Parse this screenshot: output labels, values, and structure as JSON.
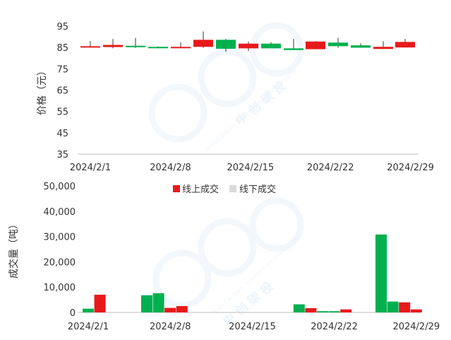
{
  "colors": {
    "up": "#E8191B",
    "down": "#00B050",
    "offline_legend": "#D9D9D9",
    "axis": "#BFBFBF",
    "text": "#333333",
    "watermark": "#3A8EE6"
  },
  "watermark": {
    "brand_en": "SinoCarbon Innovation Investment",
    "brand_cn": "中创碳投"
  },
  "chart_data": [
    {
      "type": "candlestick",
      "ylabel": "价格（元）",
      "ylim": [
        35,
        95
      ],
      "yticks": [
        "35",
        "45",
        "55",
        "65",
        "75",
        "85",
        "95"
      ],
      "ytick_values": [
        35,
        45,
        55,
        65,
        75,
        85,
        95
      ],
      "xlim": [
        0,
        29
      ],
      "xtick_labels": [
        "2024/2/1",
        "2024/2/8",
        "2024/2/15",
        "2024/2/22",
        "2024/2/29"
      ],
      "xtick_values": [
        1,
        8,
        15,
        22,
        29
      ],
      "grid": false,
      "candles": [
        {
          "date": "2024/2/1",
          "open": 85.0,
          "close": 85.6,
          "low": 85.0,
          "high": 88.0
        },
        {
          "date": "2024/2/2",
          "open": 85.2,
          "close": 86.2,
          "low": 84.6,
          "high": 89.0
        },
        {
          "date": "2024/2/5",
          "open": 85.8,
          "close": 85.2,
          "low": 84.8,
          "high": 89.5
        },
        {
          "date": "2024/2/6",
          "open": 85.3,
          "close": 84.7,
          "low": 84.7,
          "high": 85.6
        },
        {
          "date": "2024/2/7",
          "open": 84.7,
          "close": 85.3,
          "low": 84.7,
          "high": 87.5
        },
        {
          "date": "2024/2/8",
          "open": 85.3,
          "close": 88.6,
          "low": 84.8,
          "high": 92.5
        },
        {
          "date": "2024/2/18",
          "open": 88.6,
          "close": 84.4,
          "low": 83.0,
          "high": 89.0
        },
        {
          "date": "2024/2/19",
          "open": 84.6,
          "close": 86.8,
          "low": 83.3,
          "high": 87.8
        },
        {
          "date": "2024/2/20",
          "open": 86.8,
          "close": 84.6,
          "low": 84.6,
          "high": 87.5
        },
        {
          "date": "2024/2/21",
          "open": 84.6,
          "close": 83.8,
          "low": 83.8,
          "high": 89.0
        },
        {
          "date": "2024/2/22",
          "open": 84.2,
          "close": 87.8,
          "low": 84.2,
          "high": 88.0
        },
        {
          "date": "2024/2/23",
          "open": 87.3,
          "close": 85.6,
          "low": 84.9,
          "high": 89.5
        },
        {
          "date": "2024/2/26",
          "open": 86.0,
          "close": 84.9,
          "low": 84.9,
          "high": 86.9
        },
        {
          "date": "2024/2/27",
          "open": 84.3,
          "close": 85.3,
          "low": 84.3,
          "high": 88.0
        },
        {
          "date": "2024/2/28",
          "open": 85.0,
          "close": 87.6,
          "low": 85.0,
          "high": 89.0
        }
      ]
    },
    {
      "type": "bar",
      "ylabel": "成交量（吨）",
      "ylim": [
        0,
        50000
      ],
      "yticks": [
        "0",
        "10,000",
        "20,000",
        "30,000",
        "40,000",
        "50,000"
      ],
      "ytick_values": [
        0,
        10000,
        20000,
        30000,
        40000,
        50000
      ],
      "xtick_labels": [
        "2024/2/1",
        "2024/2/8",
        "2024/2/15",
        "2024/2/22",
        "2024/2/29"
      ],
      "grid": false,
      "legend_position": "top-center",
      "series": [
        {
          "name": "线上成交",
          "color": "#E8191B"
        },
        {
          "name": "线下成交",
          "color": "#D9D9D9"
        }
      ],
      "bars": [
        {
          "date": "2024/2/1",
          "value": 1500,
          "color": "#00B050"
        },
        {
          "date": "2024/2/2",
          "value": 7000,
          "color": "#E8191B"
        },
        {
          "date": "2024/2/6",
          "value": 6800,
          "color": "#00B050"
        },
        {
          "date": "2024/2/7",
          "value": 7600,
          "color": "#00B050"
        },
        {
          "date": "2024/2/8",
          "value": 1800,
          "color": "#E8191B"
        },
        {
          "date": "2024/2/9",
          "value": 2500,
          "color": "#E8191B"
        },
        {
          "date": "2024/2/19",
          "value": 3200,
          "color": "#00B050"
        },
        {
          "date": "2024/2/20",
          "value": 1700,
          "color": "#E8191B"
        },
        {
          "date": "2024/2/21",
          "value": 500,
          "color": "#00B050"
        },
        {
          "date": "2024/2/22",
          "value": 500,
          "color": "#00B050"
        },
        {
          "date": "2024/2/23",
          "value": 1200,
          "color": "#E8191B"
        },
        {
          "date": "2024/2/26",
          "value": 30800,
          "color": "#00B050"
        },
        {
          "date": "2024/2/27",
          "value": 4300,
          "color": "#00B050"
        },
        {
          "date": "2024/2/28",
          "value": 4000,
          "color": "#E8191B"
        },
        {
          "date": "2024/2/29",
          "value": 1200,
          "color": "#E8191B"
        }
      ]
    }
  ]
}
